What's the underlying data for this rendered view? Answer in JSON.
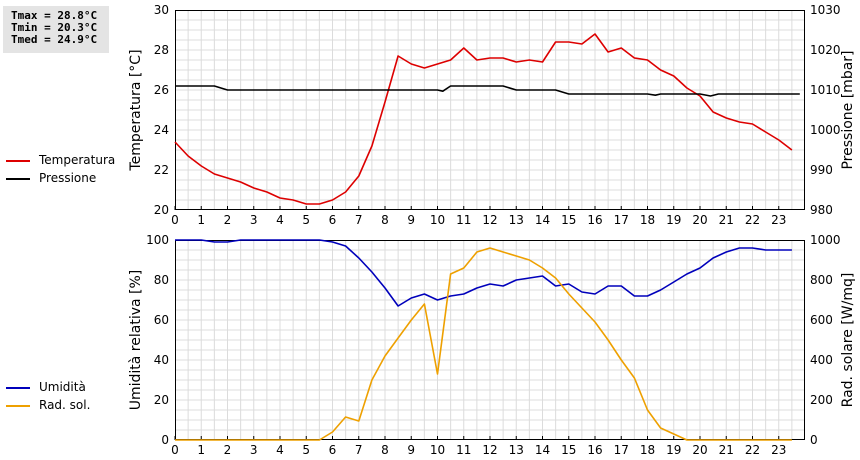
{
  "stats": {
    "tmax": "Tmax = 28.8°C",
    "tmin": "Tmin = 20.3°C",
    "tmed": "Tmed = 24.9°C"
  },
  "chart_data": [
    {
      "type": "line",
      "xlim": [
        0,
        24
      ],
      "x_ticks": [
        0,
        1,
        2,
        3,
        4,
        5,
        6,
        7,
        8,
        9,
        10,
        11,
        12,
        13,
        14,
        15,
        16,
        17,
        18,
        19,
        20,
        21,
        22,
        23
      ],
      "grid": true,
      "legend_placement": "left",
      "y_left": {
        "label": "Temperatura [°C]",
        "lim": [
          20,
          30
        ],
        "ticks": [
          20,
          22,
          24,
          26,
          28,
          30
        ]
      },
      "y_right": {
        "label": "Pressione [mbar]",
        "lim": [
          980,
          1030
        ],
        "ticks": [
          980,
          990,
          1000,
          1010,
          1020,
          1030
        ]
      },
      "series": [
        {
          "name": "Temperatura",
          "axis": "left",
          "color": "#dd0000",
          "x": [
            0,
            0.5,
            1,
            1.5,
            2,
            2.5,
            3,
            3.5,
            4,
            4.5,
            5,
            5.5,
            6,
            6.5,
            7,
            7.5,
            8,
            8.5,
            9,
            9.5,
            10,
            10.5,
            11,
            11.5,
            12,
            12.5,
            13,
            13.5,
            14,
            14.5,
            15,
            15.5,
            16,
            16.5,
            17,
            17.5,
            18,
            18.5,
            19,
            19.5,
            20,
            20.5,
            21,
            21.5,
            22,
            22.5,
            23,
            23.5
          ],
          "values": [
            23.4,
            22.7,
            22.2,
            21.8,
            21.6,
            21.4,
            21.1,
            20.9,
            20.6,
            20.5,
            20.3,
            20.3,
            20.5,
            20.9,
            21.7,
            23.2,
            25.4,
            27.7,
            27.3,
            27.1,
            27.3,
            27.5,
            28.1,
            27.5,
            27.6,
            27.6,
            27.4,
            27.5,
            27.4,
            28.4,
            28.4,
            28.3,
            28.8,
            27.9,
            28.1,
            27.6,
            27.5,
            27.0,
            26.7,
            26.1,
            25.7,
            24.9,
            24.6,
            24.4,
            24.3,
            23.9,
            23.5,
            23.0
          ]
        },
        {
          "name": "Pressione",
          "axis": "right",
          "color": "#000000",
          "x": [
            0,
            1.5,
            2,
            10,
            10.2,
            10.5,
            12.5,
            13,
            14.5,
            15,
            18,
            18.3,
            18.5,
            20,
            20.4,
            20.7,
            23.8
          ],
          "values": [
            1011,
            1011,
            1010,
            1010,
            1009.7,
            1011,
            1011,
            1010,
            1010,
            1009,
            1009,
            1008.7,
            1009,
            1009,
            1008.5,
            1009,
            1009
          ]
        }
      ]
    },
    {
      "type": "line",
      "xlim": [
        0,
        24
      ],
      "x_ticks": [
        0,
        1,
        2,
        3,
        4,
        5,
        6,
        7,
        8,
        9,
        10,
        11,
        12,
        13,
        14,
        15,
        16,
        17,
        18,
        19,
        20,
        21,
        22,
        23
      ],
      "grid": true,
      "legend_placement": "left",
      "y_left": {
        "label": "Umidità relativa [%]",
        "lim": [
          0,
          100
        ],
        "ticks": [
          0,
          20,
          40,
          60,
          80,
          100
        ]
      },
      "y_right": {
        "label": "Rad. solare [W/mq]",
        "lim": [
          0,
          1000
        ],
        "ticks": [
          0,
          200,
          400,
          600,
          800,
          1000
        ]
      },
      "series": [
        {
          "name": "Umidità",
          "axis": "left",
          "color": "#0000bb",
          "x": [
            0,
            1,
            1.5,
            2,
            2.5,
            5.5,
            6,
            6.5,
            7,
            7.5,
            8,
            8.5,
            9,
            9.5,
            10,
            10.5,
            11,
            11.5,
            12,
            12.5,
            13,
            13.5,
            14,
            14.5,
            15,
            15.5,
            16,
            16.5,
            17,
            17.5,
            18,
            18.5,
            19,
            19.5,
            20,
            20.5,
            21,
            21.5,
            22,
            22.5,
            23,
            23.5
          ],
          "values": [
            100,
            100,
            99,
            99,
            100,
            100,
            99,
            97,
            91,
            84,
            76,
            67,
            71,
            73,
            70,
            72,
            73,
            76,
            78,
            77,
            80,
            81,
            82,
            77,
            78,
            74,
            73,
            77,
            77,
            72,
            72,
            75,
            79,
            83,
            86,
            91,
            94,
            96,
            96,
            95,
            95,
            95
          ]
        },
        {
          "name": "Rad. sol.",
          "axis": "right",
          "color": "#eea000",
          "x": [
            0,
            5.5,
            6,
            6.5,
            7,
            7.5,
            8,
            8.5,
            9,
            9.5,
            10,
            10.5,
            11,
            11.5,
            12,
            12.5,
            13,
            13.5,
            14,
            14.5,
            15,
            15.5,
            16,
            16.5,
            17,
            17.5,
            18,
            18.5,
            19,
            19.5,
            20,
            23.5
          ],
          "values": [
            0,
            0,
            40,
            115,
            95,
            300,
            420,
            510,
            600,
            680,
            330,
            830,
            860,
            940,
            960,
            940,
            920,
            900,
            860,
            810,
            730,
            660,
            590,
            500,
            400,
            310,
            150,
            60,
            30,
            0,
            0,
            0
          ]
        }
      ]
    }
  ]
}
